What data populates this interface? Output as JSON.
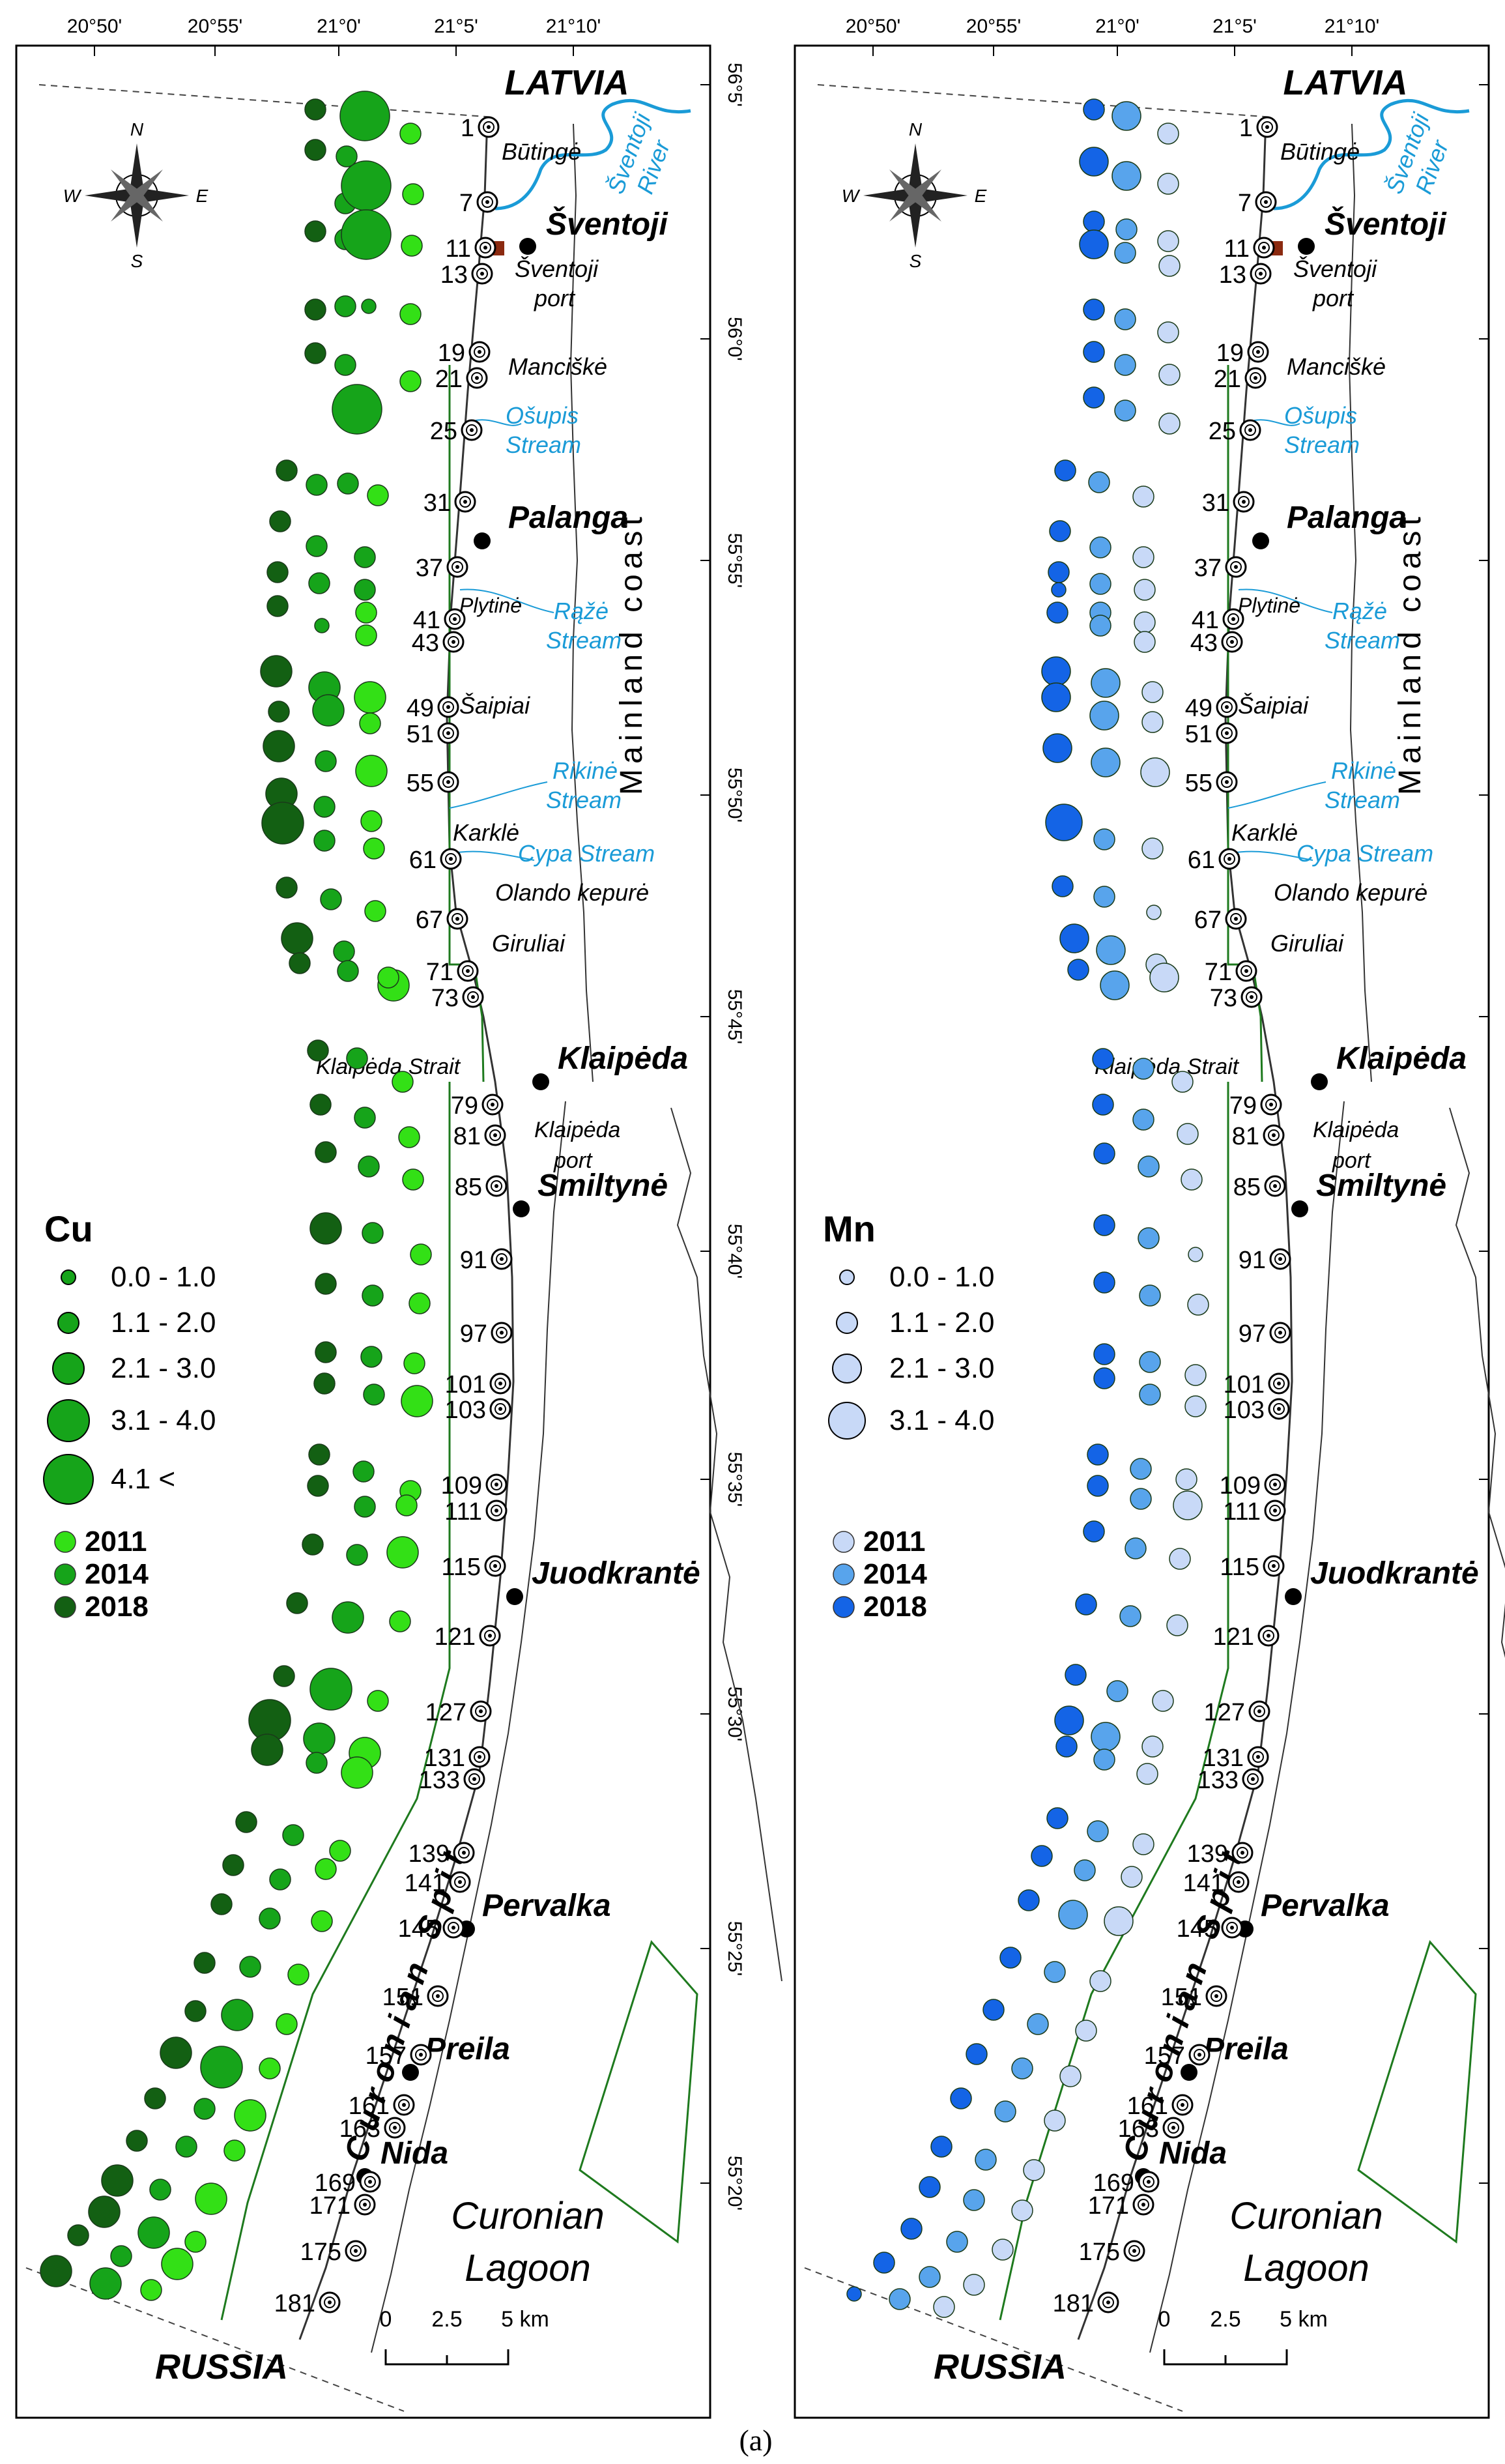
{
  "figure_label": "(a)",
  "top_coords": [
    "20°50'",
    "20°55'",
    "21°0'",
    "21°5'",
    "21°10'"
  ],
  "right_coords": [
    "56°5'",
    "56°0'",
    "55°55'",
    "55°50'",
    "55°45'",
    "55°40'",
    "55°35'",
    "55°30'",
    "55°25'",
    "55°20'"
  ],
  "compass": {
    "n": "N",
    "s": "S",
    "e": "E",
    "w": "W"
  },
  "countries": {
    "north": "LATVIA",
    "south": "RUSSIA"
  },
  "mainland": "Mainland coast",
  "spit": "Curonian Spit",
  "lagoon": [
    "Curonian",
    "Lagoon"
  ],
  "scalebar": {
    "ticks": [
      "0",
      "2.5",
      "5 km"
    ]
  },
  "towns": [
    {
      "id": "sventoji",
      "name": "Šventoji"
    },
    {
      "id": "palanga",
      "name": "Palanga"
    },
    {
      "id": "klaipeda",
      "name": "Klaipėda"
    },
    {
      "id": "smiltyne",
      "name": "Smiltynė"
    },
    {
      "id": "juodkrante",
      "name": "Juodkrantė"
    },
    {
      "id": "pervalka",
      "name": "Pervalka"
    },
    {
      "id": "preila",
      "name": "Preila"
    },
    {
      "id": "nida",
      "name": "Nida"
    }
  ],
  "places": [
    {
      "id": "butinge",
      "name": "Būtingė"
    },
    {
      "id": "sventoji-port-1",
      "name": "Šventoji"
    },
    {
      "id": "sventoji-port-2",
      "name": "port"
    },
    {
      "id": "manciske",
      "name": "Manciškė"
    },
    {
      "id": "plytine",
      "name": "Plytinė"
    },
    {
      "id": "saipiai",
      "name": "Šaipiai"
    },
    {
      "id": "karkle",
      "name": "Karklė"
    },
    {
      "id": "olando",
      "name": "Olando kepurė"
    },
    {
      "id": "giruliai",
      "name": "Giruliai"
    },
    {
      "id": "strait",
      "name": "Klaipėda Strait"
    },
    {
      "id": "kport-1",
      "name": "Klaipėda"
    },
    {
      "id": "kport-2",
      "name": "port"
    }
  ],
  "waters": [
    {
      "id": "sventoji-river-1",
      "name": "Šventoji"
    },
    {
      "id": "sventoji-river-2",
      "name": "River"
    },
    {
      "id": "osupis-1",
      "name": "Ošupis"
    },
    {
      "id": "osupis-2",
      "name": "Stream"
    },
    {
      "id": "raze-1",
      "name": "Rąžė"
    },
    {
      "id": "raze-2",
      "name": "Stream"
    },
    {
      "id": "rikine-1",
      "name": "Rikinė"
    },
    {
      "id": "rikine-2",
      "name": "Stream"
    },
    {
      "id": "cypa",
      "name": "Cypa Stream"
    }
  ],
  "stations": [
    "1",
    "7",
    "11",
    "13",
    "19",
    "21",
    "25",
    "31",
    "37",
    "41",
    "43",
    "49",
    "51",
    "55",
    "61",
    "67",
    "71",
    "73",
    "79",
    "81",
    "85",
    "91",
    "97",
    "101",
    "103",
    "109",
    "111",
    "115",
    "121",
    "127",
    "131",
    "133",
    "139",
    "141",
    "145",
    "151",
    "157",
    "161",
    "163",
    "169",
    "171",
    "175",
    "181"
  ],
  "panels": [
    {
      "id": "cu",
      "element": "Cu",
      "legend_classes": [
        "0.0 - 1.0",
        "1.1 - 2.0",
        "2.1 - 3.0",
        "3.1 - 4.0",
        "4.1 <"
      ],
      "legend_years": [
        "2011",
        "2014",
        "2018"
      ],
      "colors": {
        "2011": "#33e016",
        "2014": "#16a41a",
        "2018": "#136013"
      }
    },
    {
      "id": "mn",
      "element": "Mn",
      "legend_classes": [
        "0.0 - 1.0",
        "1.1 - 2.0",
        "2.1 - 3.0",
        "3.1 - 4.0"
      ],
      "legend_years": [
        "2011",
        "2014",
        "2018"
      ],
      "colors": {
        "2011": "#c8d9f7",
        "2014": "#58a4ec",
        "2018": "#1464e6"
      }
    }
  ],
  "map_colors": {
    "river": "#1a9bd7",
    "protected": "#1e7a1e",
    "coast": "#333333",
    "frame": "#000000"
  }
}
